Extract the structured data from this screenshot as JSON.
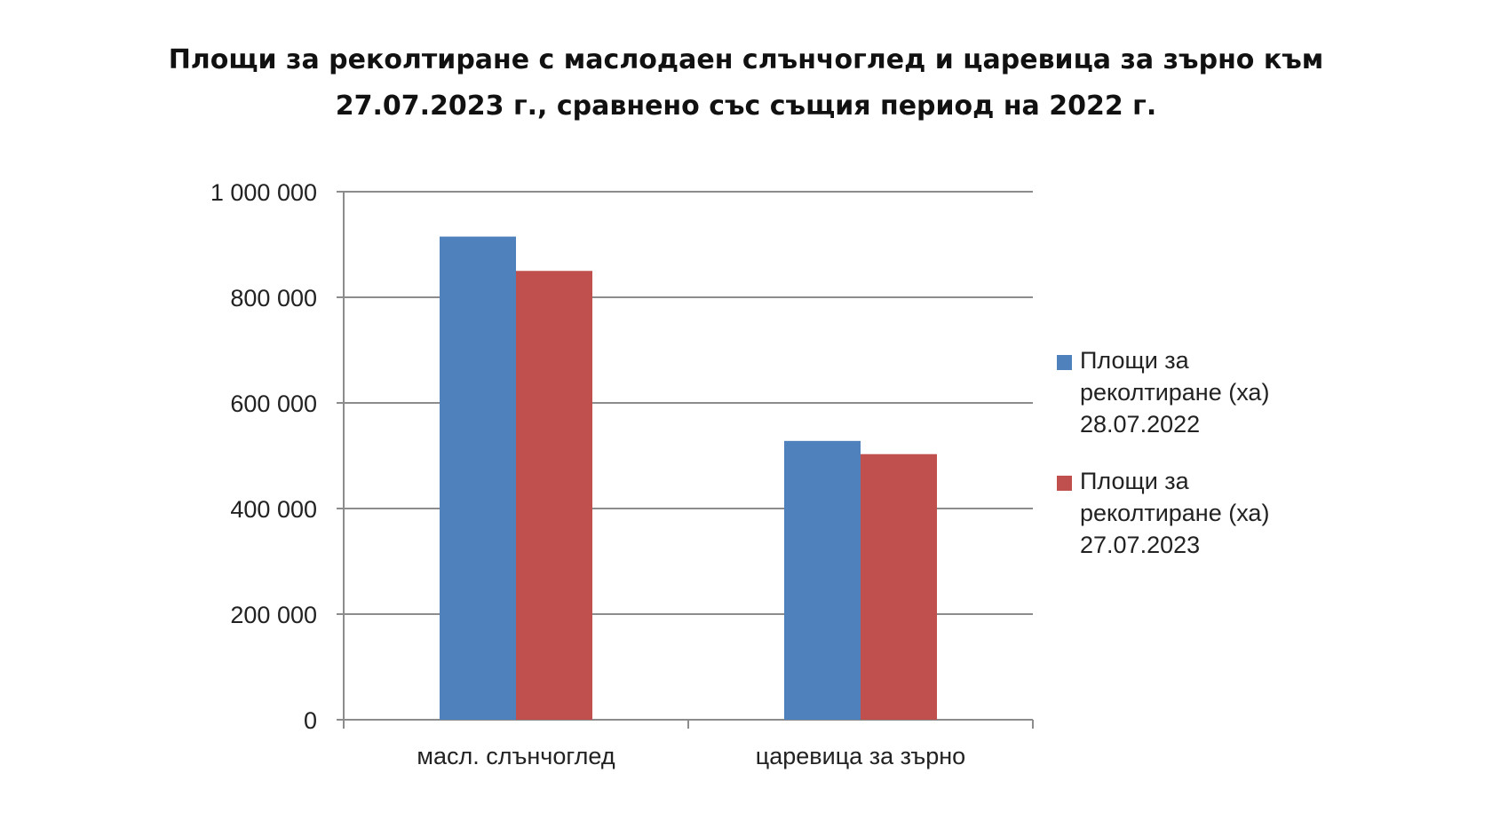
{
  "chart_data": {
    "type": "bar",
    "title_lines": [
      "Площи за реколтиране с маслодаен слънчоглед и царевица за зърно към",
      "27.07.2023 г., сравнено със същия период на 2022 г."
    ],
    "categories": [
      "масл. слънчоглед",
      "царевица за зърно"
    ],
    "series": [
      {
        "name_lines": [
          "Площи за",
          "реколтиране (ха)",
          "28.07.2022"
        ],
        "color": "#4F81BD",
        "values": [
          915000,
          528000
        ]
      },
      {
        "name_lines": [
          "Площи за",
          "реколтиране (ха)",
          "27.07.2023"
        ],
        "color": "#C0504D",
        "values": [
          850000,
          503000
        ]
      }
    ],
    "ylim": [
      0,
      1000000
    ],
    "yticks": [
      0,
      200000,
      400000,
      600000,
      800000,
      1000000
    ],
    "ytick_labels": [
      "0",
      "200 000",
      "400 000",
      "600 000",
      "800 000",
      "1 000 000"
    ],
    "grid": true,
    "legend_position": "right"
  }
}
